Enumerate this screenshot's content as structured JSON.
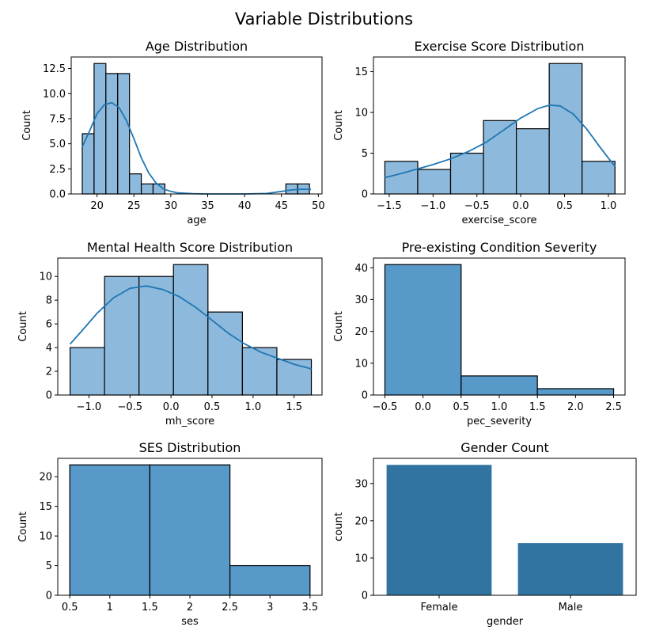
{
  "figure_title": "Variable Distributions",
  "colors": {
    "hist_fill": "#8db9dc",
    "hist_edge": "#000000",
    "kde_line": "#1f77b4",
    "count_fill": "#5799c8",
    "bar_fill": "#3274a1"
  },
  "chart_data": [
    {
      "type": "bar",
      "subtype": "histogram_with_kde",
      "title": "Age Distribution",
      "xlabel": "age",
      "ylabel": "Count",
      "xlim": [
        16.5,
        50.5
      ],
      "ylim": [
        0,
        13.65
      ],
      "xticks": [
        20,
        25,
        30,
        35,
        40,
        45,
        50
      ],
      "yticks": [
        0.0,
        2.5,
        5.0,
        7.5,
        10.0,
        12.5
      ],
      "ytick_labels": [
        "0.0",
        "2.5",
        "5.0",
        "7.5",
        "10.0",
        "12.5"
      ],
      "bins": [
        {
          "x0": 18.0,
          "x1": 19.6,
          "count": 6
        },
        {
          "x0": 19.6,
          "x1": 21.2,
          "count": 13
        },
        {
          "x0": 21.2,
          "x1": 22.8,
          "count": 12
        },
        {
          "x0": 22.8,
          "x1": 24.4,
          "count": 12
        },
        {
          "x0": 24.4,
          "x1": 26.0,
          "count": 2
        },
        {
          "x0": 26.0,
          "x1": 27.6,
          "count": 1
        },
        {
          "x0": 27.6,
          "x1": 29.2,
          "count": 1
        },
        {
          "x0": 45.6,
          "x1": 47.2,
          "count": 1
        },
        {
          "x0": 47.2,
          "x1": 48.8,
          "count": 1
        }
      ],
      "kde": [
        [
          18,
          4.7
        ],
        [
          19,
          6.3
        ],
        [
          20,
          8.0
        ],
        [
          21,
          8.9
        ],
        [
          22,
          9.1
        ],
        [
          23,
          8.6
        ],
        [
          24,
          7.3
        ],
        [
          25,
          5.5
        ],
        [
          26,
          3.6
        ],
        [
          27,
          2.1
        ],
        [
          28,
          1.1
        ],
        [
          29,
          0.5
        ],
        [
          30,
          0.25
        ],
        [
          31,
          0.1
        ],
        [
          33,
          0.02
        ],
        [
          35,
          0.0
        ],
        [
          40,
          0.0
        ],
        [
          43,
          0.05
        ],
        [
          45,
          0.25
        ],
        [
          46,
          0.36
        ],
        [
          47,
          0.44
        ],
        [
          48,
          0.47
        ],
        [
          49,
          0.45
        ]
      ]
    },
    {
      "type": "bar",
      "subtype": "histogram_with_kde",
      "title": "Exercise Score Distribution",
      "xlabel": "exercise_score",
      "ylabel": "Count",
      "xlim": [
        -1.68,
        1.19
      ],
      "ylim": [
        0,
        16.8
      ],
      "xticks": [
        -1.5,
        -1.0,
        -0.5,
        0.0,
        0.5,
        1.0
      ],
      "xtick_labels": [
        "−1.5",
        "−1.0",
        "−0.5",
        "0.0",
        "0.5",
        "1.0"
      ],
      "yticks": [
        0,
        5,
        10,
        15
      ],
      "bins": [
        {
          "x0": -1.55,
          "x1": -1.175,
          "count": 4
        },
        {
          "x0": -1.175,
          "x1": -0.8,
          "count": 3
        },
        {
          "x0": -0.8,
          "x1": -0.425,
          "count": 5
        },
        {
          "x0": -0.425,
          "x1": -0.05,
          "count": 9
        },
        {
          "x0": -0.05,
          "x1": 0.325,
          "count": 8
        },
        {
          "x0": 0.325,
          "x1": 0.7,
          "count": 16
        },
        {
          "x0": 0.7,
          "x1": 1.075,
          "count": 4
        }
      ],
      "kde": [
        [
          -1.55,
          2.0
        ],
        [
          -1.4,
          2.4
        ],
        [
          -1.2,
          3.0
        ],
        [
          -1.0,
          3.6
        ],
        [
          -0.8,
          4.3
        ],
        [
          -0.6,
          5.2
        ],
        [
          -0.4,
          6.3
        ],
        [
          -0.2,
          7.8
        ],
        [
          0.0,
          9.3
        ],
        [
          0.2,
          10.5
        ],
        [
          0.33,
          10.9
        ],
        [
          0.45,
          10.8
        ],
        [
          0.6,
          9.8
        ],
        [
          0.75,
          8.0
        ],
        [
          0.9,
          5.8
        ],
        [
          1.0,
          4.4
        ],
        [
          1.075,
          3.4
        ]
      ]
    },
    {
      "type": "bar",
      "subtype": "histogram_with_kde",
      "title": "Mental Health Score Distribution",
      "xlabel": "mh_score",
      "ylabel": "Count",
      "xlim": [
        -1.38,
        1.84
      ],
      "ylim": [
        0,
        11.55
      ],
      "xticks": [
        -1.0,
        -0.5,
        0.0,
        0.5,
        1.0,
        1.5
      ],
      "xtick_labels": [
        "−1.0",
        "−0.5",
        "0.0",
        "0.5",
        "1.0",
        "1.5"
      ],
      "yticks": [
        0,
        2,
        4,
        6,
        8,
        10
      ],
      "bins": [
        {
          "x0": -1.23,
          "x1": -0.81,
          "count": 4
        },
        {
          "x0": -0.81,
          "x1": -0.39,
          "count": 10
        },
        {
          "x0": -0.39,
          "x1": 0.03,
          "count": 10
        },
        {
          "x0": 0.03,
          "x1": 0.45,
          "count": 11
        },
        {
          "x0": 0.45,
          "x1": 0.87,
          "count": 7
        },
        {
          "x0": 0.87,
          "x1": 1.29,
          "count": 4
        },
        {
          "x0": 1.29,
          "x1": 1.71,
          "count": 3
        }
      ],
      "kde": [
        [
          -1.23,
          4.3
        ],
        [
          -1.1,
          5.3
        ],
        [
          -0.9,
          6.9
        ],
        [
          -0.7,
          8.2
        ],
        [
          -0.5,
          9.0
        ],
        [
          -0.3,
          9.2
        ],
        [
          -0.1,
          8.9
        ],
        [
          0.1,
          8.3
        ],
        [
          0.3,
          7.4
        ],
        [
          0.5,
          6.3
        ],
        [
          0.7,
          5.2
        ],
        [
          0.9,
          4.3
        ],
        [
          1.1,
          3.6
        ],
        [
          1.3,
          3.1
        ],
        [
          1.5,
          2.6
        ],
        [
          1.71,
          2.2
        ]
      ]
    },
    {
      "type": "bar",
      "subtype": "histogram",
      "title": "Pre-existing Condition Severity",
      "xlabel": "pec_severity",
      "ylabel": "Count",
      "xlim": [
        -0.65,
        2.65
      ],
      "ylim": [
        0,
        43.05
      ],
      "xticks": [
        -0.5,
        0.0,
        0.5,
        1.0,
        1.5,
        2.0,
        2.5
      ],
      "xtick_labels": [
        "−0.5",
        "0.0",
        "0.5",
        "1.0",
        "1.5",
        "2.0",
        "2.5"
      ],
      "yticks": [
        0,
        10,
        20,
        30,
        40
      ],
      "bins": [
        {
          "x0": -0.5,
          "x1": 0.5,
          "count": 41
        },
        {
          "x0": 0.5,
          "x1": 1.5,
          "count": 6
        },
        {
          "x0": 1.5,
          "x1": 2.5,
          "count": 2
        }
      ]
    },
    {
      "type": "bar",
      "subtype": "histogram",
      "title": "SES Distribution",
      "xlabel": "ses",
      "ylabel": "Count",
      "xlim": [
        0.35,
        3.65
      ],
      "ylim": [
        0,
        23.1
      ],
      "xticks": [
        0.5,
        1.0,
        1.5,
        2.0,
        2.5,
        3.0,
        3.5
      ],
      "yticks": [
        0,
        5,
        10,
        15,
        20
      ],
      "bins": [
        {
          "x0": 0.5,
          "x1": 1.5,
          "count": 22
        },
        {
          "x0": 1.5,
          "x1": 2.5,
          "count": 22
        },
        {
          "x0": 2.5,
          "x1": 3.5,
          "count": 5
        }
      ]
    },
    {
      "type": "bar",
      "subtype": "countplot",
      "title": "Gender Count",
      "xlabel": "gender",
      "ylabel": "count",
      "categories": [
        "Female",
        "Male"
      ],
      "values": [
        35,
        14
      ],
      "ylim": [
        0,
        36.75
      ],
      "yticks": [
        0,
        10,
        20,
        30
      ]
    }
  ]
}
